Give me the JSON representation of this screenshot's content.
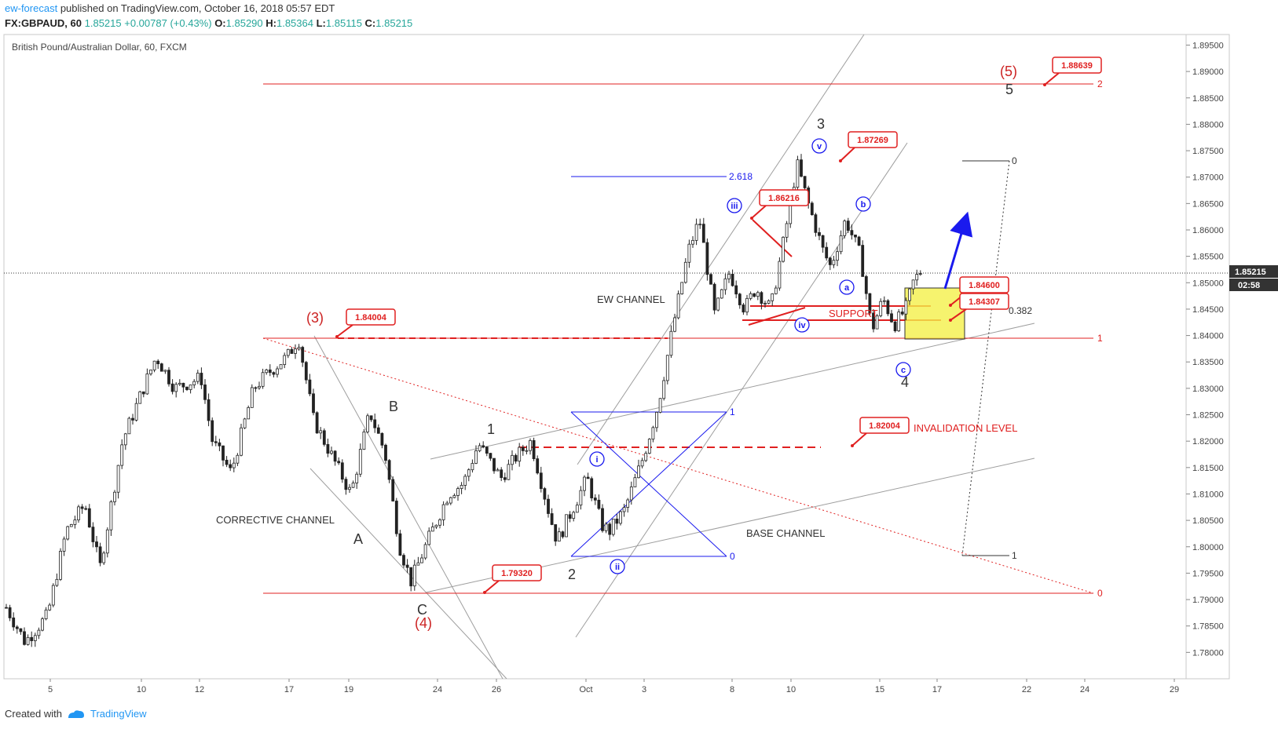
{
  "header": {
    "user": "ew-forecast",
    "published": "published on TradingView.com, October 16, 2018 05:57 EDT",
    "symbol": "FX:GBPAUD, 60",
    "price": "1.85215",
    "change": "+0.00787 (+0.43%)",
    "o_label": "O:",
    "o": "1.85290",
    "h_label": "H:",
    "h": "1.85364",
    "l_label": "L:",
    "l": "1.85115",
    "c_label": "C:",
    "c": "1.85215"
  },
  "footer": {
    "created_with": "Created with",
    "brand": "TradingView"
  },
  "colors": {
    "red": "#e02020",
    "blue": "#1a1aee",
    "gray": "#9e9e9e",
    "yellow": "#f4f04a",
    "candle": "#222222"
  },
  "chart_data": {
    "type": "candlestick",
    "title": "British Pound/Australian Dollar, 60, FXCM",
    "ylim": [
      1.775,
      1.897
    ],
    "y_ticks": [
      "1.78000",
      "1.78500",
      "1.79000",
      "1.79500",
      "1.80000",
      "1.80500",
      "1.81000",
      "1.81500",
      "1.82000",
      "1.82500",
      "1.83000",
      "1.83500",
      "1.84000",
      "1.84500",
      "1.85000",
      "1.85500",
      "1.86000",
      "1.86500",
      "1.87000",
      "1.87500",
      "1.88000",
      "1.88500",
      "1.89000",
      "1.89500"
    ],
    "x_ticks": [
      "5",
      "10",
      "12",
      "17",
      "19",
      "24",
      "26",
      "Oct",
      "3",
      "8",
      "10",
      "15",
      "17",
      "22",
      "24",
      "29"
    ],
    "last_price": "1.85215",
    "countdown": "02:58",
    "price_path": [
      [
        0,
        1.7885
      ],
      [
        5,
        1.782
      ],
      [
        11,
        1.787
      ],
      [
        16,
        1.803
      ],
      [
        21,
        1.808
      ],
      [
        25,
        1.796
      ],
      [
        31,
        1.82
      ],
      [
        36,
        1.829
      ],
      [
        40,
        1.836
      ],
      [
        45,
        1.83
      ],
      [
        52,
        1.832
      ],
      [
        55,
        1.82
      ],
      [
        60,
        1.814
      ],
      [
        66,
        1.83
      ],
      [
        70,
        1.833
      ],
      [
        75,
        1.836
      ],
      [
        78,
        1.8395
      ],
      [
        82,
        1.824
      ],
      [
        87,
        1.817
      ],
      [
        92,
        1.81
      ],
      [
        97,
        1.8255
      ],
      [
        101,
        1.818
      ],
      [
        105,
        1.8
      ],
      [
        108,
        1.7935
      ],
      [
        113,
        1.802
      ],
      [
        118,
        1.81
      ],
      [
        122,
        1.812
      ],
      [
        126,
        1.8195
      ],
      [
        132,
        1.813
      ],
      [
        136,
        1.817
      ],
      [
        140,
        1.82
      ],
      [
        145,
        1.806
      ],
      [
        147,
        1.801
      ],
      [
        151,
        1.807
      ],
      [
        155,
        1.813
      ],
      [
        159,
        1.804
      ],
      [
        161,
        1.803
      ],
      [
        165,
        1.807
      ],
      [
        170,
        1.817
      ],
      [
        174,
        1.827
      ],
      [
        178,
        1.842
      ],
      [
        182,
        1.856
      ],
      [
        185,
        1.862
      ],
      [
        189,
        1.844
      ],
      [
        193,
        1.852
      ],
      [
        197,
        1.845
      ],
      [
        200,
        1.849
      ],
      [
        204,
        1.845
      ],
      [
        208,
        1.86
      ],
      [
        211,
        1.8725
      ],
      [
        214,
        1.865
      ],
      [
        218,
        1.856
      ],
      [
        220,
        1.853
      ],
      [
        224,
        1.862
      ],
      [
        228,
        1.855
      ],
      [
        231,
        1.841
      ],
      [
        234,
        1.847
      ],
      [
        237,
        1.842
      ],
      [
        240,
        1.845
      ],
      [
        242,
        1.85
      ],
      [
        244,
        1.8522
      ]
    ],
    "annotations": {
      "wave_labels": [
        "(3)",
        "(4)",
        "(5)",
        "5",
        "A",
        "B",
        "C",
        "1",
        "2",
        "3",
        "4"
      ],
      "circled_labels": [
        "i",
        "ii",
        "iii",
        "iv",
        "v",
        "a",
        "b",
        "c"
      ],
      "price_callouts": [
        "1.84004",
        "1.79320",
        "1.86216",
        "1.87269",
        "1.88639",
        "1.82004",
        "1.84600",
        "1.84307"
      ],
      "channels": [
        "CORRECTIVE CHANNEL",
        "EW CHANNEL",
        "BASE CHANNEL"
      ],
      "support_label": "SUPPORT",
      "invalidation_label": "INVALIDATION LEVEL",
      "fib_levels": [
        "2.618",
        "1",
        "0",
        "0.382"
      ],
      "fib_extension_levels": [
        "2",
        "1",
        "0"
      ],
      "fib_vertical_levels": [
        "0",
        "1"
      ]
    }
  }
}
